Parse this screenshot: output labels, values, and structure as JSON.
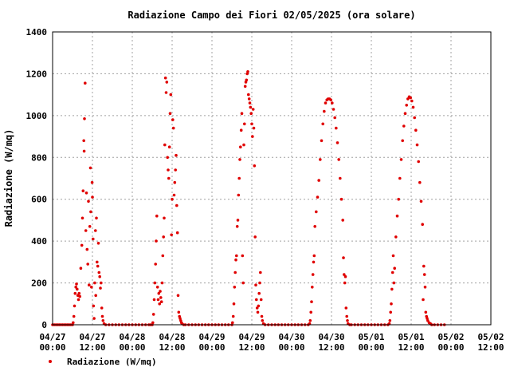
{
  "chart_data": {
    "type": "scatter",
    "title": "Radiazione Campo dei Fiori 02/05/2025 (ora solare)",
    "xlabel": "",
    "ylabel": "Radiazione (W/mq)",
    "ylim": [
      0,
      1400
    ],
    "yticks": [
      0,
      200,
      400,
      600,
      800,
      1000,
      1200,
      1400
    ],
    "xlim_hours": [
      0,
      132
    ],
    "xticks": [
      {
        "hour": 0,
        "line1": "04/27",
        "line2": "00:00"
      },
      {
        "hour": 12,
        "line1": "04/27",
        "line2": "12:00"
      },
      {
        "hour": 24,
        "line1": "04/28",
        "line2": "00:00"
      },
      {
        "hour": 36,
        "line1": "04/28",
        "line2": "12:00"
      },
      {
        "hour": 48,
        "line1": "04/29",
        "line2": "00:00"
      },
      {
        "hour": 60,
        "line1": "04/29",
        "line2": "12:00"
      },
      {
        "hour": 72,
        "line1": "04/30",
        "line2": "00:00"
      },
      {
        "hour": 84,
        "line1": "04/30",
        "line2": "12:00"
      },
      {
        "hour": 96,
        "line1": "05/01",
        "line2": "00:00"
      },
      {
        "hour": 108,
        "line1": "05/01",
        "line2": "12:00"
      },
      {
        "hour": 120,
        "line1": "05/02",
        "line2": "00:00"
      },
      {
        "hour": 132,
        "line1": "05/02",
        "line2": "12:00"
      }
    ],
    "grid": true,
    "legend_position": "bottom-left",
    "series": [
      {
        "name": "Radiazione (W/mq)",
        "color": "#e00000",
        "points": [
          [
            0,
            0
          ],
          [
            0.5,
            0
          ],
          [
            1,
            0
          ],
          [
            1.5,
            0
          ],
          [
            2,
            0
          ],
          [
            2.5,
            0
          ],
          [
            3,
            0
          ],
          [
            3.5,
            0
          ],
          [
            4,
            0
          ],
          [
            4.5,
            0
          ],
          [
            5,
            0
          ],
          [
            5.5,
            0
          ],
          [
            6,
            0
          ],
          [
            6.2,
            10
          ],
          [
            6.4,
            40
          ],
          [
            6.6,
            90
          ],
          [
            6.8,
            150
          ],
          [
            7,
            180
          ],
          [
            7.2,
            195
          ],
          [
            7.4,
            170
          ],
          [
            7.6,
            140
          ],
          [
            7.8,
            120
          ],
          [
            8,
            150
          ],
          [
            8.2,
            135
          ],
          [
            8.5,
            270
          ],
          [
            8.8,
            380
          ],
          [
            9,
            510
          ],
          [
            9.2,
            640
          ],
          [
            9.4,
            880
          ],
          [
            9.5,
            830
          ],
          [
            9.6,
            985
          ],
          [
            9.8,
            1155
          ],
          [
            10,
            450
          ],
          [
            10.2,
            630
          ],
          [
            10.4,
            360
          ],
          [
            10.6,
            290
          ],
          [
            10.8,
            590
          ],
          [
            11,
            190
          ],
          [
            11.2,
            470
          ],
          [
            11.4,
            750
          ],
          [
            11.5,
            540
          ],
          [
            11.7,
            180
          ],
          [
            11.9,
            680
          ],
          [
            12,
            610
          ],
          [
            12.2,
            410
          ],
          [
            12.3,
            90
          ],
          [
            12.5,
            30
          ],
          [
            12.7,
            200
          ],
          [
            12.9,
            450
          ],
          [
            13,
            140
          ],
          [
            13.2,
            510
          ],
          [
            13.4,
            300
          ],
          [
            13.6,
            280
          ],
          [
            13.8,
            390
          ],
          [
            14,
            250
          ],
          [
            14.2,
            230
          ],
          [
            14.4,
            175
          ],
          [
            14.6,
            200
          ],
          [
            14.8,
            80
          ],
          [
            15,
            40
          ],
          [
            15.2,
            20
          ],
          [
            15.5,
            5
          ],
          [
            16,
            0
          ],
          [
            17,
            0
          ],
          [
            18,
            0
          ],
          [
            19,
            0
          ],
          [
            20,
            0
          ],
          [
            21,
            0
          ],
          [
            22,
            0
          ],
          [
            23,
            0
          ],
          [
            24,
            0
          ],
          [
            25,
            0
          ],
          [
            26,
            0
          ],
          [
            27,
            0
          ],
          [
            28,
            0
          ],
          [
            29,
            0
          ],
          [
            29.5,
            0
          ],
          [
            30,
            0
          ],
          [
            30.2,
            10
          ],
          [
            30.4,
            50
          ],
          [
            30.6,
            120
          ],
          [
            30.8,
            200
          ],
          [
            31,
            290
          ],
          [
            31.2,
            400
          ],
          [
            31.4,
            520
          ],
          [
            31.6,
            180
          ],
          [
            31.8,
            120
          ],
          [
            32,
            150
          ],
          [
            32.2,
            100
          ],
          [
            32.4,
            160
          ],
          [
            32.6,
            130
          ],
          [
            32.8,
            110
          ],
          [
            33,
            200
          ],
          [
            33.2,
            330
          ],
          [
            33.4,
            420
          ],
          [
            33.6,
            510
          ],
          [
            33.8,
            860
          ],
          [
            34,
            1180
          ],
          [
            34.2,
            1110
          ],
          [
            34.4,
            1160
          ],
          [
            34.6,
            800
          ],
          [
            34.8,
            740
          ],
          [
            35,
            700
          ],
          [
            35.2,
            850
          ],
          [
            35.4,
            1010
          ],
          [
            35.6,
            1100
          ],
          [
            35.8,
            430
          ],
          [
            36,
            600
          ],
          [
            36.2,
            980
          ],
          [
            36.4,
            940
          ],
          [
            36.6,
            620
          ],
          [
            36.8,
            680
          ],
          [
            37,
            740
          ],
          [
            37.2,
            810
          ],
          [
            37.4,
            570
          ],
          [
            37.6,
            440
          ],
          [
            37.8,
            140
          ],
          [
            38,
            60
          ],
          [
            38.2,
            40
          ],
          [
            38.4,
            30
          ],
          [
            38.6,
            20
          ],
          [
            38.8,
            10
          ],
          [
            39,
            5
          ],
          [
            39.5,
            0
          ],
          [
            40,
            0
          ],
          [
            41,
            0
          ],
          [
            42,
            0
          ],
          [
            43,
            0
          ],
          [
            44,
            0
          ],
          [
            45,
            0
          ],
          [
            46,
            0
          ],
          [
            47,
            0
          ],
          [
            48,
            0
          ],
          [
            49,
            0
          ],
          [
            50,
            0
          ],
          [
            51,
            0
          ],
          [
            52,
            0
          ],
          [
            53,
            0
          ],
          [
            54,
            0
          ],
          [
            54.2,
            10
          ],
          [
            54.4,
            40
          ],
          [
            54.6,
            100
          ],
          [
            54.8,
            180
          ],
          [
            55,
            250
          ],
          [
            55.2,
            310
          ],
          [
            55.4,
            330
          ],
          [
            55.6,
            470
          ],
          [
            55.8,
            500
          ],
          [
            56,
            620
          ],
          [
            56.2,
            700
          ],
          [
            56.4,
            790
          ],
          [
            56.6,
            850
          ],
          [
            56.8,
            930
          ],
          [
            57,
            1010
          ],
          [
            57.2,
            330
          ],
          [
            57.4,
            200
          ],
          [
            57.6,
            860
          ],
          [
            57.8,
            960
          ],
          [
            58,
            1140
          ],
          [
            58.2,
            1160
          ],
          [
            58.4,
            1170
          ],
          [
            58.6,
            1200
          ],
          [
            58.8,
            1210
          ],
          [
            59,
            1100
          ],
          [
            59.2,
            1080
          ],
          [
            59.4,
            1060
          ],
          [
            59.6,
            1040
          ],
          [
            59.8,
            1010
          ],
          [
            60,
            960
          ],
          [
            60.2,
            900
          ],
          [
            60.4,
            1030
          ],
          [
            60.6,
            940
          ],
          [
            60.8,
            760
          ],
          [
            61,
            420
          ],
          [
            61.2,
            190
          ],
          [
            61.4,
            120
          ],
          [
            61.6,
            80
          ],
          [
            61.8,
            60
          ],
          [
            62,
            90
          ],
          [
            62.2,
            150
          ],
          [
            62.4,
            200
          ],
          [
            62.6,
            250
          ],
          [
            62.8,
            120
          ],
          [
            63,
            40
          ],
          [
            63.2,
            20
          ],
          [
            63.5,
            5
          ],
          [
            64,
            0
          ],
          [
            65,
            0
          ],
          [
            66,
            0
          ],
          [
            67,
            0
          ],
          [
            68,
            0
          ],
          [
            69,
            0
          ],
          [
            70,
            0
          ],
          [
            71,
            0
          ],
          [
            72,
            0
          ],
          [
            73,
            0
          ],
          [
            74,
            0
          ],
          [
            75,
            0
          ],
          [
            76,
            0
          ],
          [
            77,
            0
          ],
          [
            77.4,
            5
          ],
          [
            77.6,
            20
          ],
          [
            77.8,
            60
          ],
          [
            78,
            110
          ],
          [
            78.2,
            180
          ],
          [
            78.4,
            240
          ],
          [
            78.6,
            300
          ],
          [
            78.8,
            330
          ],
          [
            79,
            470
          ],
          [
            79.4,
            540
          ],
          [
            79.8,
            610
          ],
          [
            80.2,
            690
          ],
          [
            80.6,
            790
          ],
          [
            81,
            880
          ],
          [
            81.4,
            960
          ],
          [
            81.8,
            1020
          ],
          [
            82.2,
            1060
          ],
          [
            82.6,
            1075
          ],
          [
            83,
            1080
          ],
          [
            83.4,
            1080
          ],
          [
            83.8,
            1075
          ],
          [
            84.2,
            1060
          ],
          [
            84.6,
            1030
          ],
          [
            85,
            990
          ],
          [
            85.4,
            940
          ],
          [
            85.8,
            870
          ],
          [
            86.2,
            790
          ],
          [
            86.6,
            700
          ],
          [
            87,
            600
          ],
          [
            87.4,
            500
          ],
          [
            87.6,
            320
          ],
          [
            87.8,
            240
          ],
          [
            88,
            200
          ],
          [
            88.2,
            230
          ],
          [
            88.4,
            80
          ],
          [
            88.6,
            40
          ],
          [
            88.8,
            20
          ],
          [
            89,
            5
          ],
          [
            89.5,
            0
          ],
          [
            90,
            0
          ],
          [
            91,
            0
          ],
          [
            92,
            0
          ],
          [
            93,
            0
          ],
          [
            94,
            0
          ],
          [
            95,
            0
          ],
          [
            96,
            0
          ],
          [
            97,
            0
          ],
          [
            98,
            0
          ],
          [
            99,
            0
          ],
          [
            100,
            0
          ],
          [
            101,
            0
          ],
          [
            101.4,
            5
          ],
          [
            101.6,
            20
          ],
          [
            101.8,
            60
          ],
          [
            102,
            100
          ],
          [
            102.2,
            170
          ],
          [
            102.4,
            250
          ],
          [
            102.6,
            330
          ],
          [
            102.8,
            200
          ],
          [
            103,
            270
          ],
          [
            103.4,
            420
          ],
          [
            103.8,
            520
          ],
          [
            104.2,
            600
          ],
          [
            104.6,
            700
          ],
          [
            105,
            790
          ],
          [
            105.4,
            880
          ],
          [
            105.8,
            950
          ],
          [
            106.2,
            1010
          ],
          [
            106.6,
            1050
          ],
          [
            107,
            1080
          ],
          [
            107.4,
            1090
          ],
          [
            107.8,
            1085
          ],
          [
            108.2,
            1070
          ],
          [
            108.6,
            1040
          ],
          [
            109,
            990
          ],
          [
            109.4,
            930
          ],
          [
            109.8,
            860
          ],
          [
            110.2,
            780
          ],
          [
            110.6,
            680
          ],
          [
            111,
            590
          ],
          [
            111.4,
            480
          ],
          [
            111.6,
            120
          ],
          [
            111.8,
            280
          ],
          [
            112,
            240
          ],
          [
            112.2,
            180
          ],
          [
            112.4,
            60
          ],
          [
            112.6,
            40
          ],
          [
            112.8,
            30
          ],
          [
            113,
            20
          ],
          [
            113.4,
            10
          ],
          [
            113.8,
            5
          ],
          [
            114.2,
            0
          ],
          [
            115,
            0
          ],
          [
            116,
            0
          ],
          [
            117,
            0
          ],
          [
            118,
            0
          ]
        ]
      }
    ]
  }
}
